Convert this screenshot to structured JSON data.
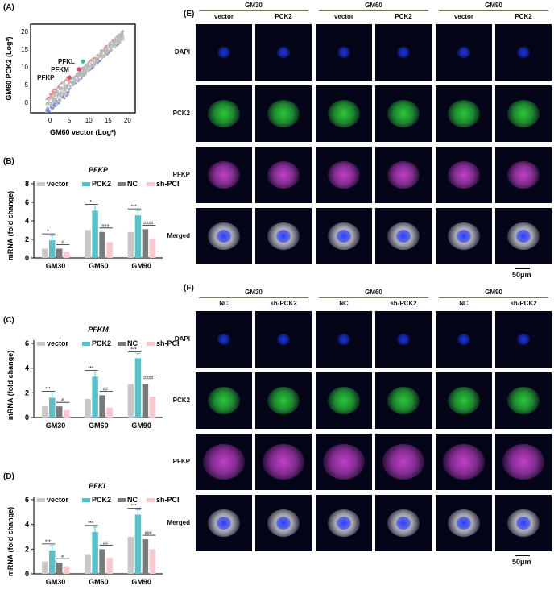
{
  "panels": {
    "A": {
      "label": "(A)",
      "xlabel": "GM60 vector (Log²)",
      "ylabel": "GM60 PCK2 (Log²)",
      "xticks": [
        "0",
        "5",
        "10",
        "15",
        "20"
      ],
      "yticks": [
        "0",
        "5",
        "10",
        "15",
        "20"
      ],
      "annotations": [
        "PFKL",
        "PFKM",
        "PFKP"
      ]
    },
    "B": {
      "label": "(B)",
      "title": "PFKP"
    },
    "C": {
      "label": "(C)",
      "title": "PFKM"
    },
    "D": {
      "label": "(D)",
      "title": "PFKL"
    },
    "E": {
      "label": "(E)"
    },
    "F": {
      "label": "(F)"
    }
  },
  "colors": {
    "vector": "#c8c8c8",
    "PCK2": "#5bbfc9",
    "NC": "#7a7a7a",
    "sh-PCK2": "#f8c8cc"
  },
  "chart_data": [
    {
      "type": "scatter",
      "title": "",
      "xlabel": "GM60 vector (Log²)",
      "ylabel": "GM60 PCK2 (Log²)",
      "xlim": [
        -5,
        22
      ],
      "ylim": [
        -3,
        22
      ],
      "highlighted": [
        {
          "name": "PFKL",
          "x": 8.5,
          "y": 11.5
        },
        {
          "name": "PFKM",
          "x": 7.5,
          "y": 9.3
        },
        {
          "name": "PFKP",
          "x": 5,
          "y": 7
        }
      ]
    },
    {
      "type": "bar",
      "title": "PFKP",
      "ylabel": "mRNA (fold change)",
      "ylim": [
        0,
        8
      ],
      "yticks": [
        "0",
        "2",
        "4",
        "6",
        "8"
      ],
      "categories": [
        "GM30",
        "GM60",
        "GM90"
      ],
      "series": [
        {
          "name": "vector",
          "values": [
            1.0,
            3.0,
            2.8
          ]
        },
        {
          "name": "PCK2",
          "values": [
            1.9,
            5.1,
            4.6
          ]
        },
        {
          "name": "NC",
          "values": [
            1.0,
            2.8,
            3.1
          ]
        },
        {
          "name": "sh-PCK2",
          "values": [
            0.6,
            1.7,
            2.1
          ]
        }
      ],
      "significance": [
        [
          "*",
          "#"
        ],
        [
          "*",
          "###"
        ],
        [
          "***",
          "####"
        ]
      ]
    },
    {
      "type": "bar",
      "title": "PFKM",
      "ylabel": "mRNA (fold change)",
      "ylim": [
        0,
        6
      ],
      "yticks": [
        "0",
        "2",
        "4",
        "6"
      ],
      "categories": [
        "GM30",
        "GM60",
        "GM90"
      ],
      "series": [
        {
          "name": "vector",
          "values": [
            0.9,
            1.5,
            2.7
          ]
        },
        {
          "name": "PCK2",
          "values": [
            1.6,
            3.3,
            4.8
          ]
        },
        {
          "name": "NC",
          "values": [
            0.9,
            1.8,
            2.7
          ]
        },
        {
          "name": "sh-PCK2",
          "values": [
            0.6,
            0.8,
            1.7
          ]
        }
      ],
      "significance": [
        [
          "***",
          "#"
        ],
        [
          "***",
          "##"
        ],
        [
          "***",
          "####"
        ]
      ]
    },
    {
      "type": "bar",
      "title": "PFKL",
      "ylabel": "mRNA (fold change)",
      "ylim": [
        0,
        6
      ],
      "yticks": [
        "0",
        "2",
        "4",
        "6"
      ],
      "categories": [
        "GM30",
        "GM60",
        "GM90"
      ],
      "series": [
        {
          "name": "vector",
          "values": [
            1.0,
            1.6,
            3.0
          ]
        },
        {
          "name": "PCK2",
          "values": [
            1.9,
            3.4,
            4.8
          ]
        },
        {
          "name": "NC",
          "values": [
            0.9,
            2.0,
            2.8
          ]
        },
        {
          "name": "sh-PCK2",
          "values": [
            0.6,
            1.3,
            2.0
          ]
        }
      ],
      "significance": [
        [
          "***",
          "#"
        ],
        [
          "***",
          "##"
        ],
        [
          "***",
          "###"
        ]
      ]
    }
  ],
  "E": {
    "groups": [
      "GM30",
      "GM60",
      "GM90"
    ],
    "cols": [
      "vector",
      "PCK2",
      "vector",
      "PCK2",
      "vector",
      "PCK2"
    ],
    "rows": [
      "DAPI",
      "PCK2",
      "PFKP",
      "Merged"
    ],
    "scale": "50μm"
  },
  "F": {
    "groups": [
      "GM30",
      "GM60",
      "GM90"
    ],
    "cols": [
      "NC",
      "sh-PCK2",
      "NC",
      "sh-PCK2",
      "NC",
      "sh-PCK2"
    ],
    "rows": [
      "DAPI",
      "PCK2",
      "PFKP",
      "Merged"
    ],
    "scale": "50μm"
  }
}
